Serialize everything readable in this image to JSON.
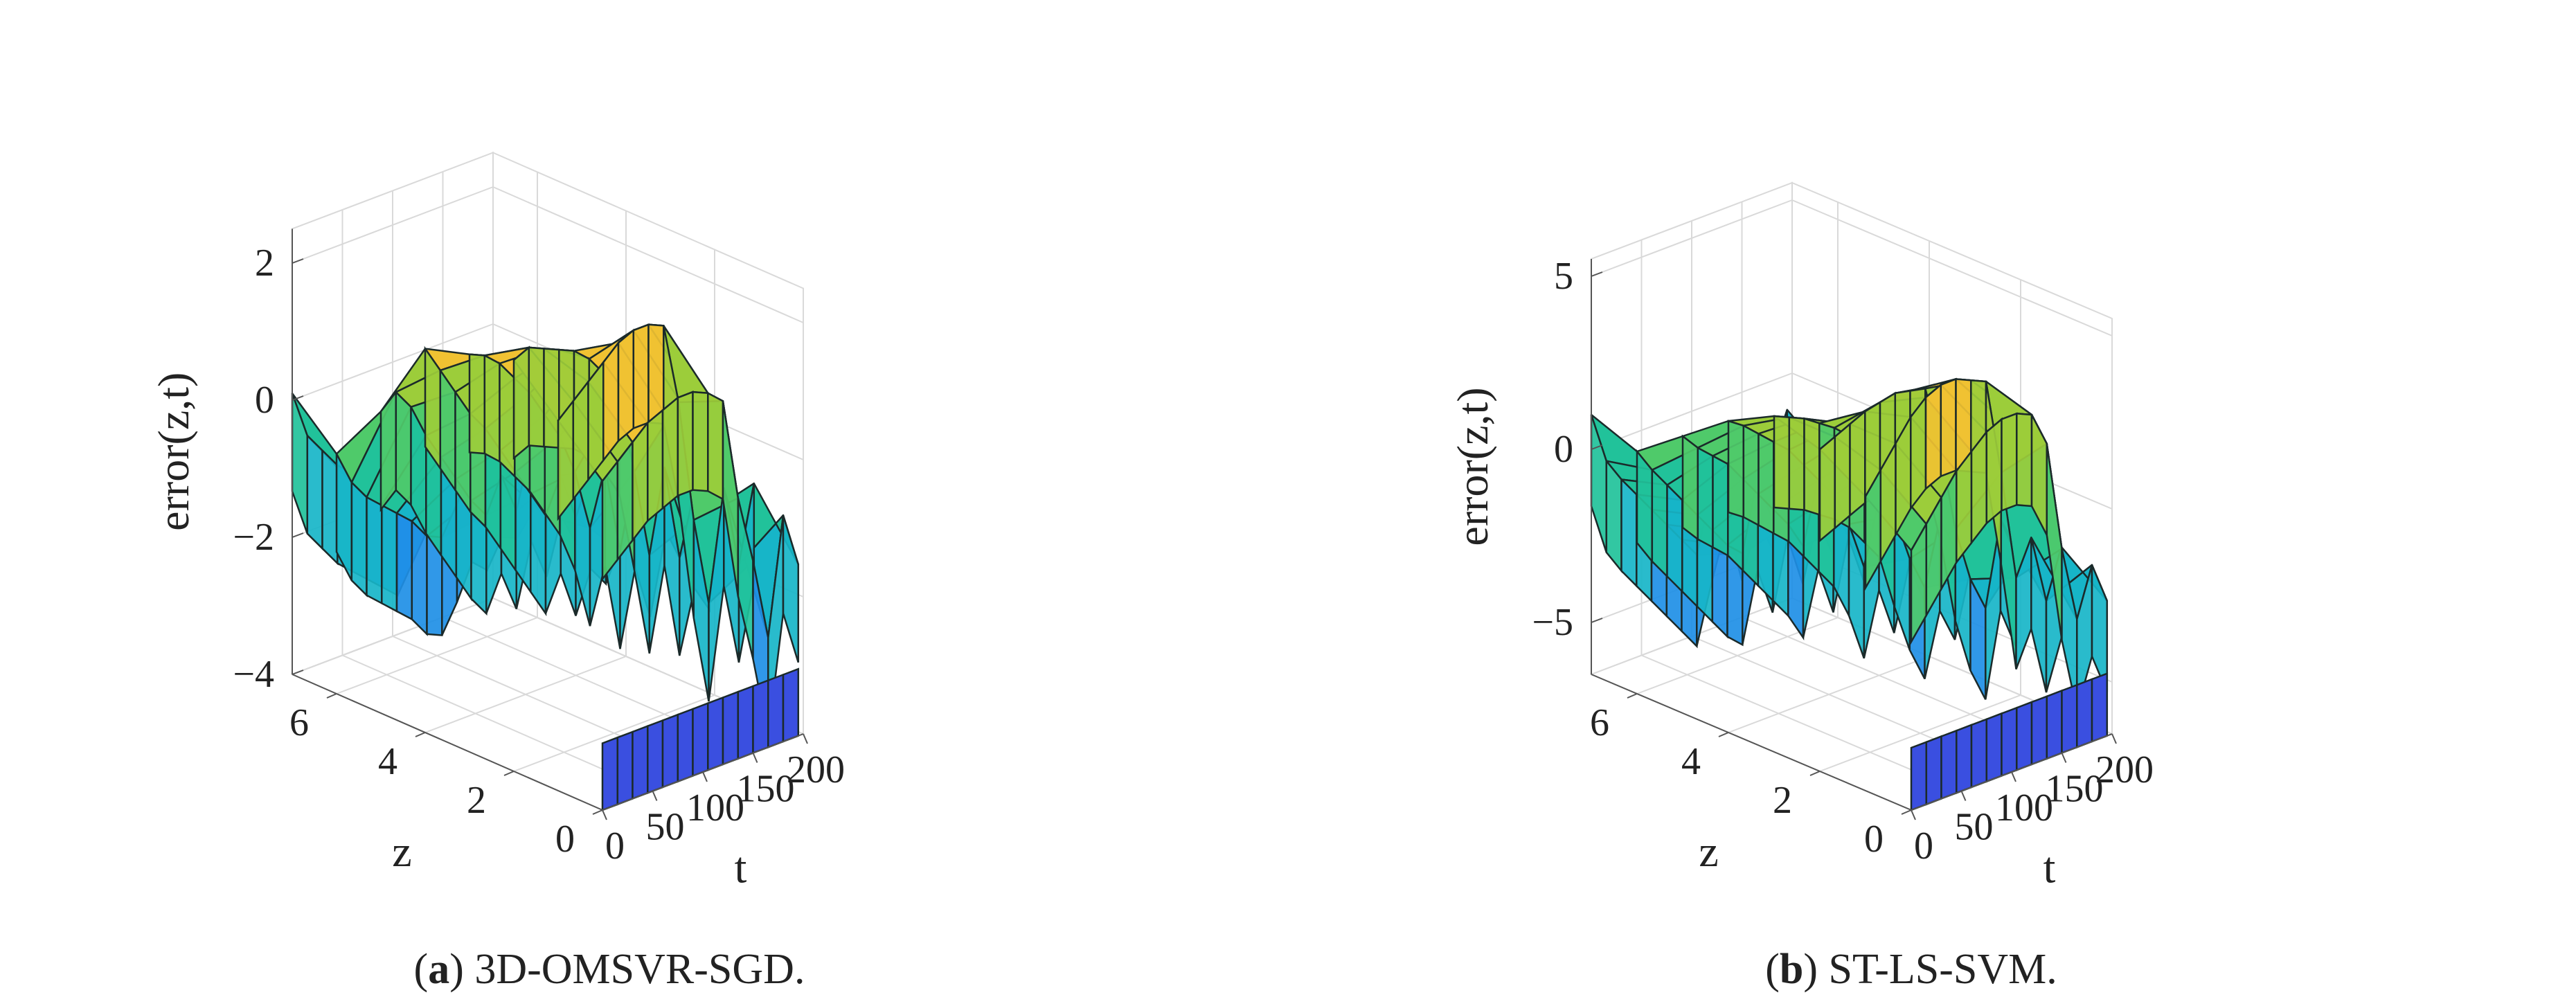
{
  "figure": {
    "panels": [
      {
        "id": "a",
        "caption_letter": "a",
        "caption_text": " 3D-OMSVR-SGD.",
        "chart_data": {
          "type": "surface3d",
          "zlabel": "error(z,t)",
          "xlabel": "t",
          "ylabel": "z",
          "xlim": [
            0,
            200
          ],
          "ylim": [
            0,
            7
          ],
          "zlim": [
            -4,
            2.5
          ],
          "xticks": [
            0,
            50,
            100,
            150,
            200
          ],
          "yticks": [
            0,
            2,
            4,
            6
          ],
          "zticks": [
            -4,
            -2,
            0,
            2
          ],
          "xtick_labels": [
            "0",
            "50",
            "100",
            "150",
            "200"
          ],
          "ytick_labels": [
            "0",
            "2",
            "4",
            "6"
          ],
          "ztick_labels": [
            "−4",
            "−2",
            "0",
            "2"
          ],
          "t_samples": [
            0,
            15,
            30,
            45,
            60,
            75,
            90,
            105,
            120,
            135,
            150,
            165,
            180,
            195
          ],
          "z_samples": [
            0,
            1,
            2,
            3,
            4,
            5,
            6,
            7
          ],
          "series": [
            {
              "z": 7,
              "values": [
                0.1,
                -0.6,
                -0.9,
                -1.2,
                -1.4,
                -1.6,
                -1.8,
                -2.0,
                -1.6,
                -1.2,
                -1.0,
                -1.4,
                -1.1,
                -0.8
              ]
            },
            {
              "z": 6,
              "values": [
                -0.5,
                -1.0,
                -1.3,
                -1.5,
                -1.7,
                -1.9,
                -2.2,
                -2.3,
                -1.9,
                -1.4,
                -1.6,
                -1.2,
                -1.3,
                -1.0
              ]
            },
            {
              "z": 5,
              "values": [
                0.4,
                0.6,
                0.3,
                -0.2,
                -0.6,
                -1.0,
                -1.4,
                -1.7,
                -1.2,
                -1.8,
                -0.9,
                -1.5,
                -0.7,
                -1.2
              ]
            },
            {
              "z": 4,
              "values": [
                1.6,
                1.2,
                0.8,
                0.4,
                0.1,
                -0.3,
                -0.7,
                -1.1,
                -1.5,
                -1.0,
                -1.7,
                -1.1,
                -1.4,
                -0.9
              ]
            },
            {
              "z": 3,
              "values": [
                1.8,
                1.7,
                1.5,
                1.2,
                0.9,
                0.5,
                0.1,
                -0.5,
                -1.4,
                -0.6,
                -1.9,
                -0.8,
                -1.6,
                -0.5
              ]
            },
            {
              "z": 2,
              "values": [
                2.0,
                2.1,
                2.0,
                1.9,
                1.8,
                1.6,
                1.3,
                0.9,
                -0.3,
                -1.6,
                -0.4,
                -1.8,
                -0.9,
                -1.3
              ]
            },
            {
              "z": 1,
              "values": [
                1.4,
                1.6,
                1.8,
                2.0,
                2.2,
                2.3,
                2.3,
                2.2,
                1.0,
                -0.8,
                -2.1,
                -0.5,
                -1.7,
                -0.6
              ]
            },
            {
              "z": 0,
              "values": [
                0.8,
                1.0,
                1.2,
                1.4,
                1.5,
                1.6,
                1.6,
                1.5,
                1.3,
                -0.2,
                -1.2,
                -2.4,
                -0.7,
                -1.5
              ]
            }
          ],
          "floor": -4.0,
          "colormap": [
            "#3a4fe0",
            "#1e8fe6",
            "#17b5c8",
            "#21c29a",
            "#4fca6a",
            "#9ccd3a",
            "#f0c232"
          ]
        }
      },
      {
        "id": "b",
        "caption_letter": "b",
        "caption_text": " ST-LS-SVM.",
        "chart_data": {
          "type": "surface3d",
          "zlabel": "error(z,t)",
          "xlabel": "t",
          "ylabel": "z",
          "xlim": [
            0,
            200
          ],
          "ylim": [
            0,
            7
          ],
          "zlim": [
            -6.5,
            5.5
          ],
          "xticks": [
            0,
            50,
            100,
            150,
            200
          ],
          "yticks": [
            0,
            2,
            4,
            6
          ],
          "zticks": [
            -5,
            0,
            5
          ],
          "xtick_labels": [
            "0",
            "50",
            "100",
            "150",
            "200"
          ],
          "ytick_labels": [
            "0",
            "2",
            "4",
            "6"
          ],
          "ztick_labels": [
            "−5",
            "0",
            "5"
          ],
          "t_samples": [
            0,
            15,
            30,
            45,
            60,
            75,
            90,
            105,
            120,
            135,
            150,
            165,
            180,
            195
          ],
          "z_samples": [
            0,
            1,
            2,
            3,
            4,
            5,
            6,
            7
          ],
          "series": [
            {
              "z": 7,
              "values": [
                1.0,
                -0.5,
                -1.2,
                -1.8,
                -2.4,
                -3.0,
                -3.6,
                -4.2,
                -2.5,
                -1.0,
                -2.8,
                -1.2,
                -2.2,
                -1.0
              ]
            },
            {
              "z": 6,
              "values": [
                0.5,
                -0.2,
                -0.8,
                -1.4,
                -2.0,
                -2.6,
                -3.2,
                -3.6,
                -1.6,
                -3.0,
                -1.0,
                -2.5,
                -0.8,
                -2.0
              ]
            },
            {
              "z": 5,
              "values": [
                1.5,
                1.0,
                0.6,
                0.2,
                -0.4,
                -1.0,
                -1.6,
                -2.2,
                -3.0,
                -1.2,
                -2.6,
                -0.6,
                -2.0,
                -1.0
              ]
            },
            {
              "z": 4,
              "values": [
                2.5,
                2.2,
                1.8,
                1.4,
                1.0,
                0.4,
                -0.2,
                -0.8,
                -1.8,
                -3.2,
                -1.4,
                -2.8,
                -1.0,
                -2.2
              ]
            },
            {
              "z": 3,
              "values": [
                3.2,
                3.0,
                2.8,
                2.5,
                2.2,
                1.8,
                1.2,
                0.6,
                -1.0,
                -2.4,
                -3.4,
                -1.6,
                -2.6,
                -0.8
              ]
            },
            {
              "z": 2,
              "values": [
                2.8,
                3.0,
                3.2,
                3.4,
                3.5,
                3.6,
                3.5,
                3.4,
                1.5,
                -1.0,
                -2.6,
                -3.6,
                -1.2,
                -2.4
              ]
            },
            {
              "z": 1,
              "values": [
                2.0,
                2.6,
                3.2,
                3.8,
                4.2,
                4.4,
                4.4,
                4.2,
                4.0,
                1.2,
                -2.0,
                -1.0,
                -3.0,
                -1.6
              ]
            },
            {
              "z": 0,
              "values": [
                1.0,
                1.6,
                2.2,
                2.8,
                3.2,
                3.6,
                3.8,
                3.8,
                3.6,
                2.6,
                -0.6,
                -2.8,
                -1.4,
                -2.6
              ]
            }
          ],
          "floor": -6.5,
          "colormap": [
            "#3a4fe0",
            "#1e8fe6",
            "#17b5c8",
            "#21c29a",
            "#4fca6a",
            "#9ccd3a",
            "#f0c232"
          ]
        }
      }
    ]
  }
}
